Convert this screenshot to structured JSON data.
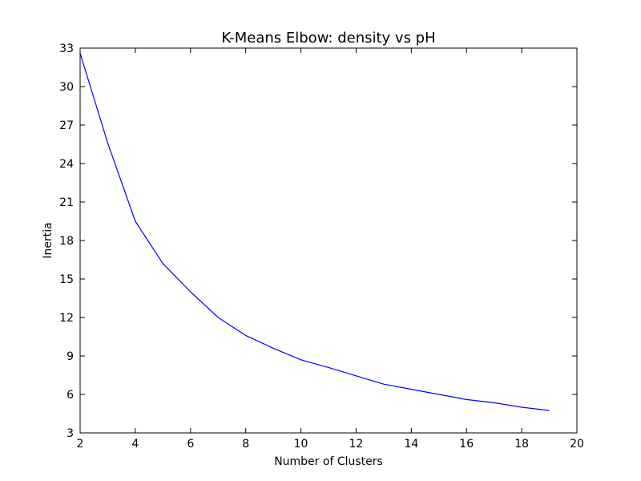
{
  "chart_data": {
    "type": "line",
    "title": "K-Means Elbow: density vs pH",
    "xlabel": "Number of Clusters",
    "ylabel": "Inertia",
    "xlim": [
      2,
      20
    ],
    "ylim": [
      3,
      33
    ],
    "xticks": [
      "2",
      "4",
      "6",
      "8",
      "10",
      "12",
      "14",
      "16",
      "18",
      "20"
    ],
    "yticks": [
      "3",
      "6",
      "9",
      "12",
      "15",
      "18",
      "21",
      "24",
      "27",
      "30",
      "33"
    ],
    "grid": false,
    "line_color": "#0000ff",
    "series": [
      {
        "x": [
          2,
          3,
          4,
          5,
          6,
          7,
          8,
          9,
          10,
          11,
          12,
          13,
          14,
          15,
          16,
          17,
          18,
          19
        ],
        "values": [
          32.6,
          25.6,
          19.5,
          16.2,
          14.0,
          12.0,
          10.6,
          9.6,
          8.7,
          8.1,
          7.45,
          6.8,
          6.4,
          6.0,
          5.6,
          5.35,
          5.0,
          4.75
        ]
      }
    ]
  }
}
